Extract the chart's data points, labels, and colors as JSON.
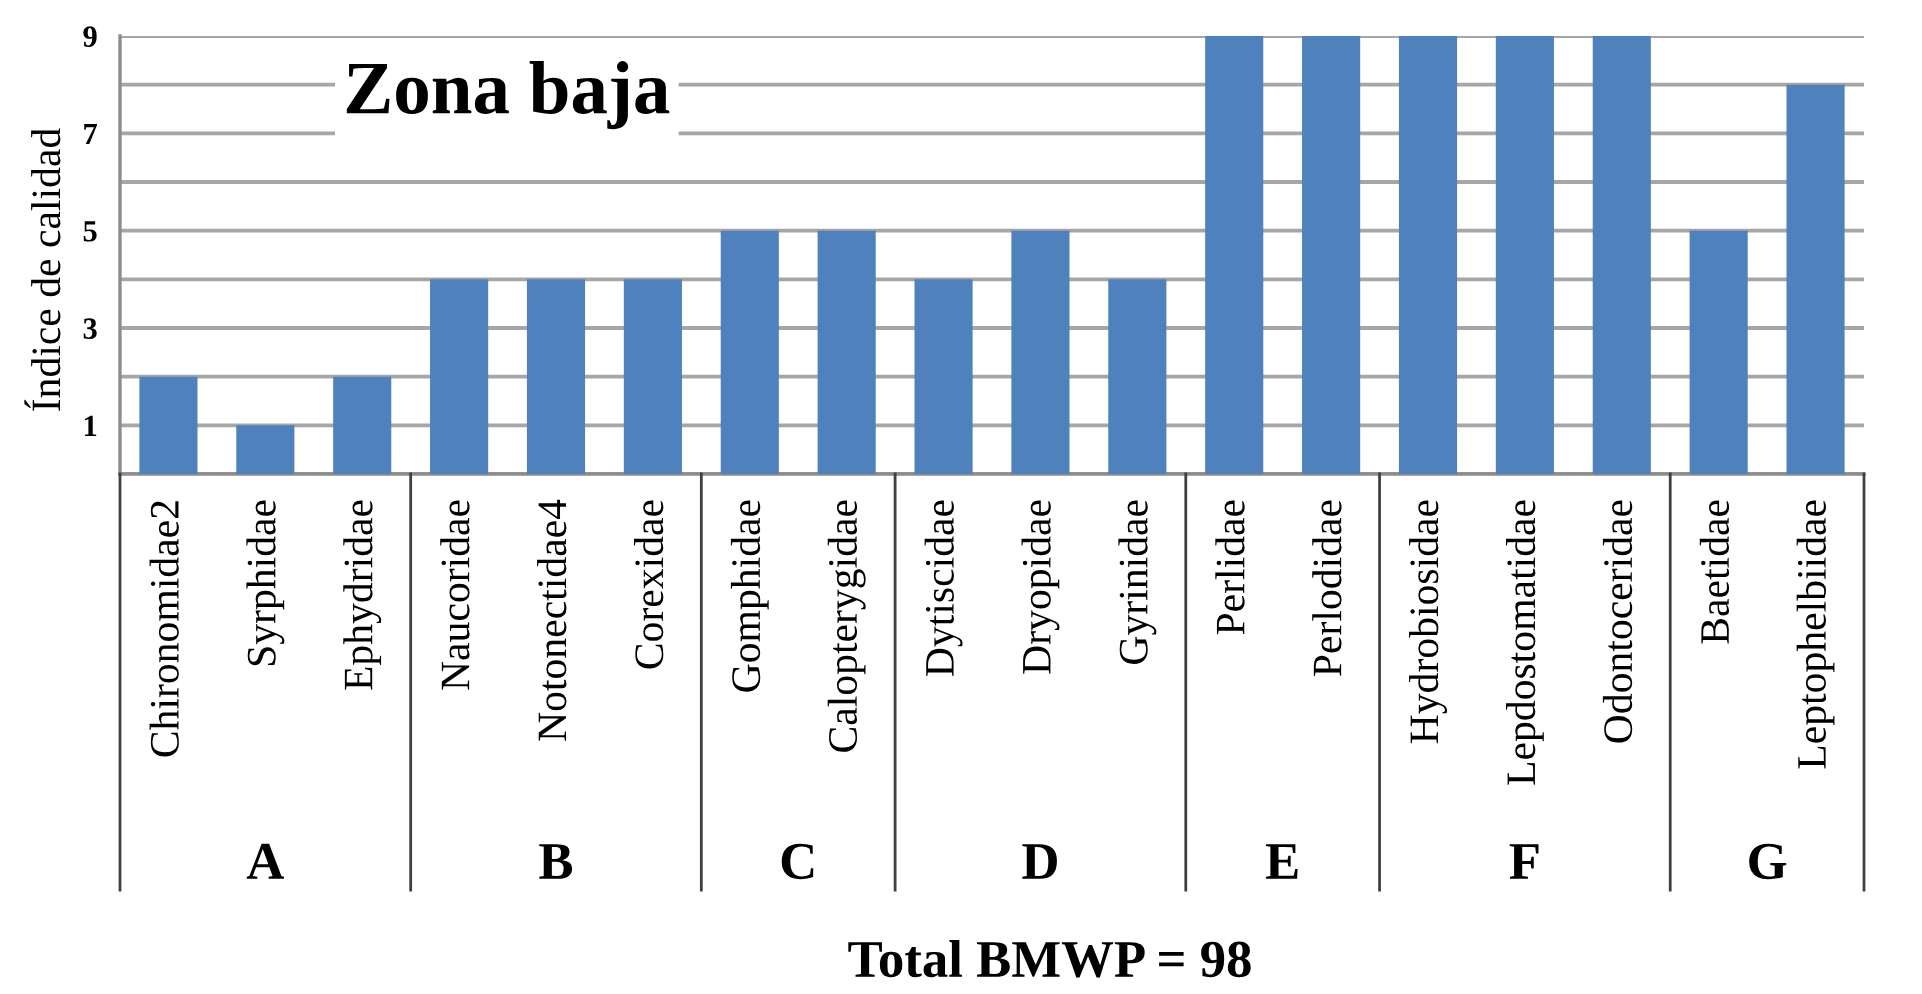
{
  "chart_data": {
    "type": "bar",
    "title": "Zona baja",
    "ylabel": "Índice de calidad",
    "xlabel": "Total BMWP = 98",
    "categories": [
      "Chironomidae2",
      "Syrphidae",
      "Ephydridae",
      "Naucoridae",
      "Notonectidae4",
      "Corexidae",
      "Gomphidae",
      "Calopterygidae",
      "Dytiscidae",
      "Dryopidae",
      "Gyrinidae",
      "Perlidae",
      "Perlodidae",
      "Hydrobiosidae",
      "Lepdostomatidae",
      "Odontoceridae",
      "Baetidae",
      "Leptophelbiidae"
    ],
    "values": [
      2,
      1,
      2,
      4,
      4,
      4,
      5,
      5,
      4,
      5,
      4,
      9,
      9,
      9,
      9,
      9,
      5,
      8
    ],
    "color": "#4f81bd",
    "ylim": [
      0,
      9
    ],
    "yticks": [
      {
        "value": 0,
        "label": null
      },
      1,
      {
        "value": 2,
        "label": null
      },
      3,
      {
        "value": 4,
        "label": null
      },
      5,
      {
        "value": 6,
        "label": null
      },
      7,
      {
        "value": 8,
        "label": null
      },
      9
    ],
    "grid": "y",
    "annotations": [
      "A",
      "B",
      "C",
      "D",
      "E",
      "F",
      "G"
    ]
  }
}
